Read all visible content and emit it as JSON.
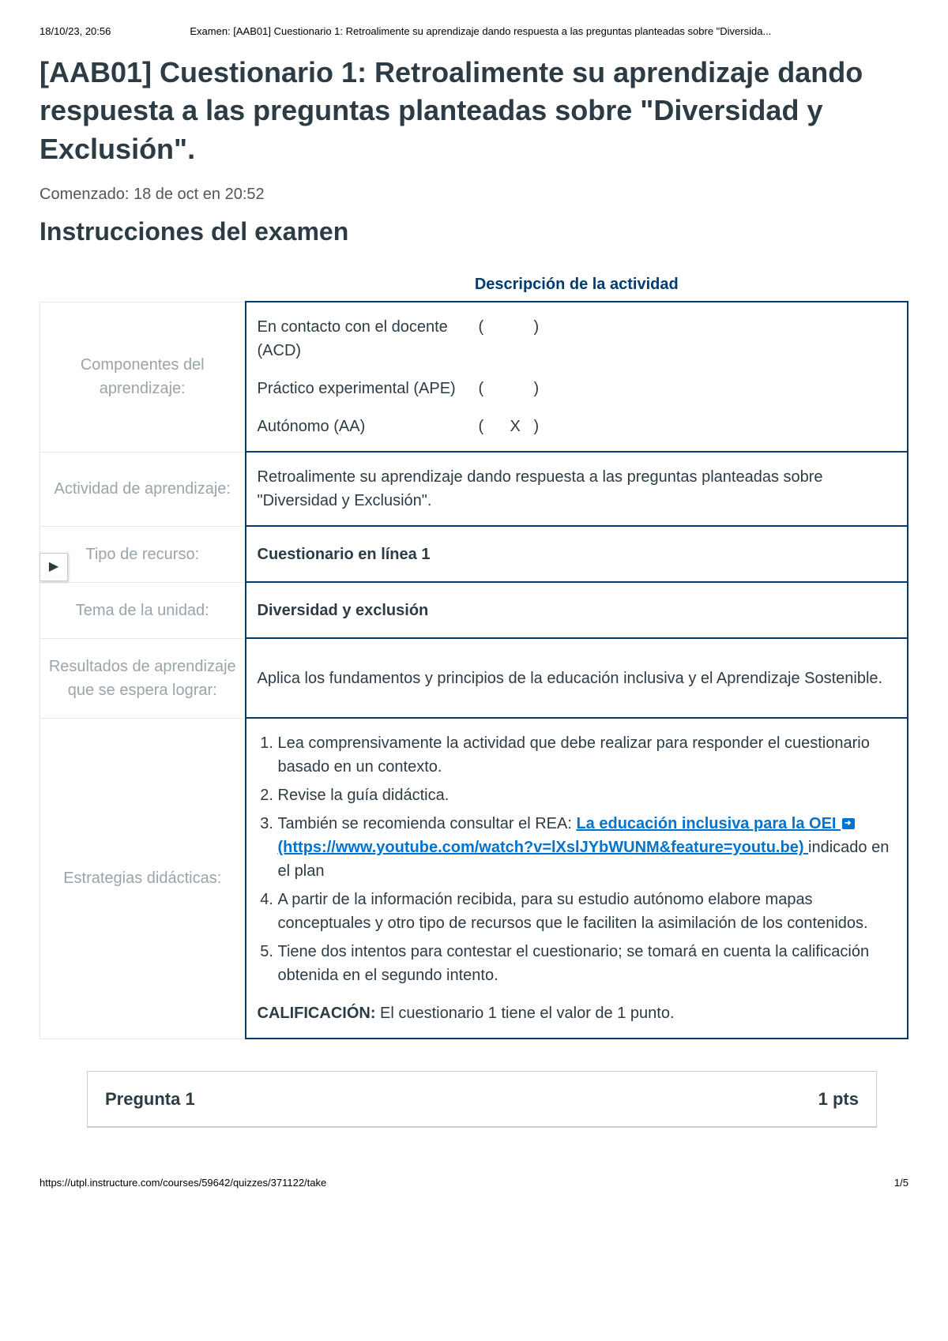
{
  "print_header": {
    "datetime": "18/10/23, 20:56",
    "doc_title": "Examen: [AAB01] Cuestionario 1: Retroalimente su aprendizaje dando respuesta a las preguntas planteadas sobre \"Diversida..."
  },
  "page_title": "[AAB01] Cuestionario 1: Retroalimente su aprendizaje dando respuesta a las preguntas planteadas sobre \"Diversidad y Exclusión\".",
  "started_label": "Comenzado: 18 de oct en 20:52",
  "instructions_heading": "Instrucciones del examen",
  "activity_desc_header": "Descripción de la actividad",
  "table": {
    "rows": [
      {
        "label": "Componentes del aprendizaje:",
        "components": [
          {
            "name": "En contacto con el docente (ACD)",
            "mark": " "
          },
          {
            "name": "Práctico experimental (APE)",
            "mark": " "
          },
          {
            "name": "Autónomo (AA)",
            "mark": "X"
          }
        ]
      },
      {
        "label": "Actividad de aprendizaje:",
        "value": "Retroalimente su aprendizaje dando respuesta a las preguntas planteadas sobre \"Diversidad y Exclusión\"."
      },
      {
        "label": "Tipo de recurso:",
        "value": "Cuestionario en línea 1",
        "bold": true
      },
      {
        "label": "Tema de la unidad:",
        "value": "Diversidad y exclusión",
        "bold": true
      },
      {
        "label": "Resultados de aprendizaje que se espera lograr:",
        "value": "Aplica los fundamentos y principios de la educación inclusiva y el Aprendizaje Sostenible."
      }
    ],
    "strategies_label": "Estrategias didácticas:",
    "strategies": [
      "Lea comprensivamente la actividad que debe realizar para responder el cuestionario basado en un contexto.",
      "Revise la guía didáctica."
    ],
    "strategy3_prefix": "También se recomienda consultar el REA: ",
    "strategy3_link_text": "La educación inclusiva para la OEI",
    "strategy3_url_text": " (https://www.youtube.com/watch?v=lXslJYbWUNM&feature=youtu.be) ",
    "strategy3_suffix": "indicado en el plan",
    "strategies_rest": [
      "A partir de la información recibida, para su estudio autónomo elabore mapas conceptuales y otro tipo de recursos que le faciliten la asimilación de los contenidos.",
      "Tiene dos intentos para contestar el cuestionario; se tomará en cuenta la calificación obtenida en el segundo intento."
    ],
    "calificacion_label": "CALIFICACIÓN:",
    "calificacion_text": " El cuestionario 1 tiene el valor de 1 punto."
  },
  "expand_icon": "▶",
  "question": {
    "label": "Pregunta 1",
    "points": "1 pts"
  },
  "print_footer": {
    "url": "https://utpl.instructure.com/courses/59642/quizzes/371122/take",
    "page": "1/5"
  },
  "colors": {
    "brand_dark_blue": "#003b71",
    "link_blue": "#0073cf",
    "text": "#2d3b45",
    "muted": "#9aa4ab",
    "light_border": "#e8e8e8"
  }
}
